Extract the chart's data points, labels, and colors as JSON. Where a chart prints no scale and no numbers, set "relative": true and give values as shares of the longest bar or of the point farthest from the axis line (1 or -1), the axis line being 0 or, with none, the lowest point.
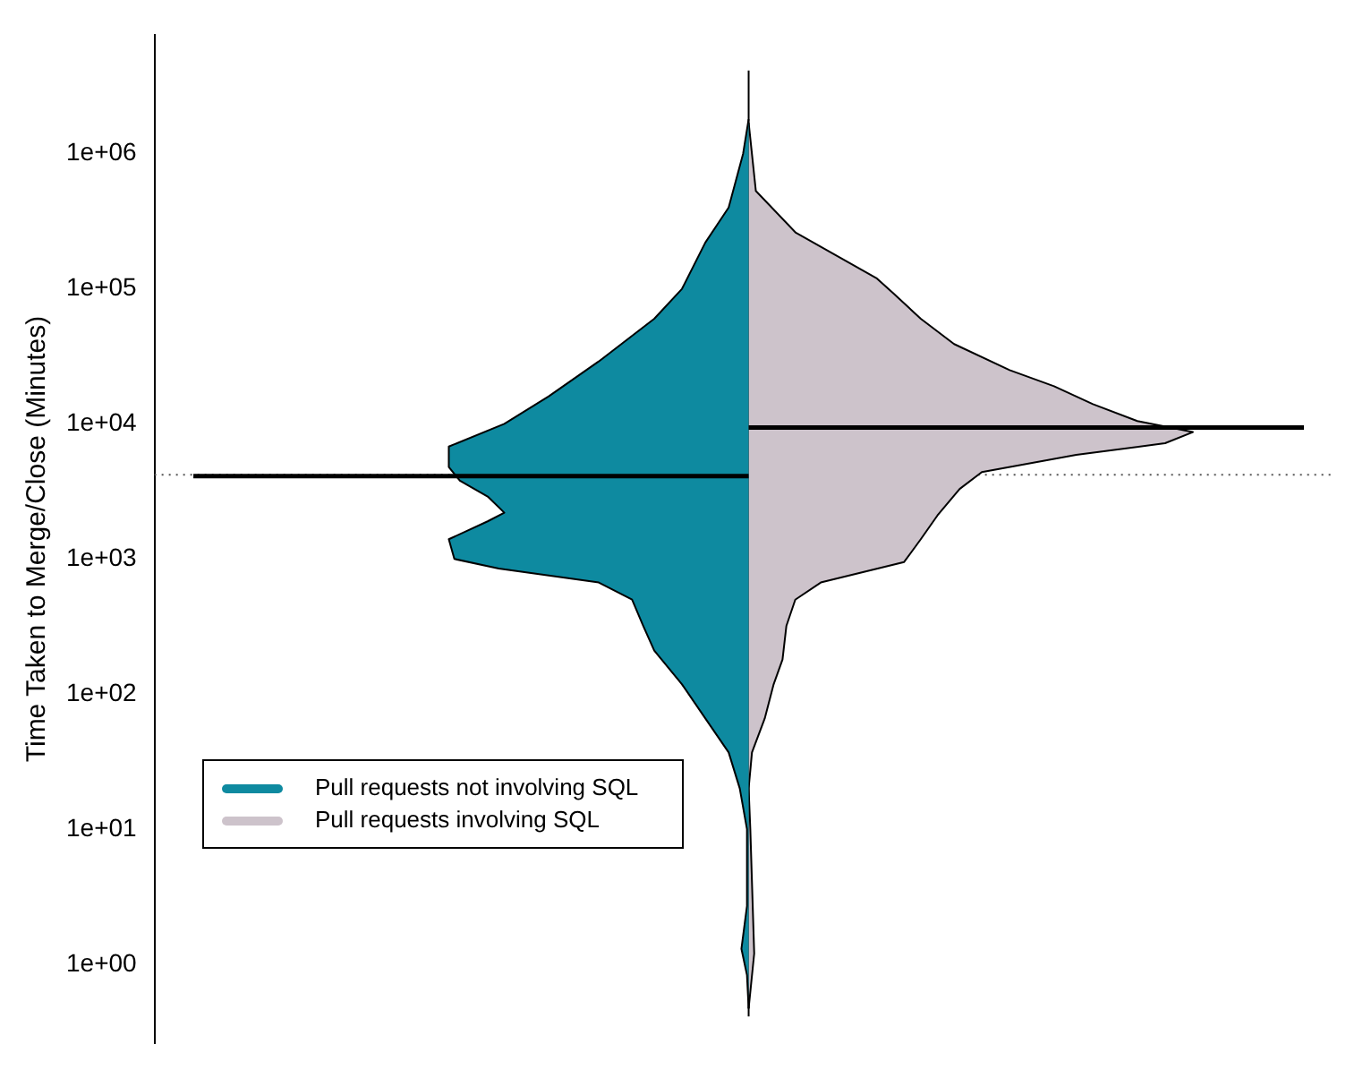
{
  "chart_data": {
    "type": "area",
    "orientation": "horizontal",
    "relative": true,
    "log": "y",
    "ylabel": "Time Taken to Merge/Close (Minutes)",
    "ylim": [
      0.26,
      7600000
    ],
    "yticks": [
      {
        "value": 1,
        "label": "1e+00"
      },
      {
        "value": 10,
        "label": "1e+01"
      },
      {
        "value": 100,
        "label": "1e+02"
      },
      {
        "value": 1000,
        "label": "1e+03"
      },
      {
        "value": 10000,
        "label": "1e+04"
      },
      {
        "value": 100000,
        "label": "1e+05"
      },
      {
        "value": 1000000,
        "label": "1e+06"
      }
    ],
    "grid": false,
    "legend": "bottom left",
    "series": [
      {
        "name": "Pull requests not involving SQL",
        "color": "#0e8aa0",
        "x": [
          1800000,
          1000000,
          400000,
          220000,
          100000,
          60000,
          29000,
          16000,
          10000,
          6800,
          4800,
          3800,
          2900,
          2200,
          1900,
          1400,
          1000,
          850,
          670,
          500,
          320,
          210,
          118,
          66,
          37,
          20,
          10,
          2.7,
          1.3,
          0.83,
          0.47
        ],
        "values": [
          0,
          -0.01,
          -0.036,
          -0.078,
          -0.12,
          -0.17,
          -0.27,
          -0.36,
          -0.44,
          -0.54,
          -0.54,
          -0.52,
          -0.47,
          -0.44,
          -0.47,
          -0.54,
          -0.53,
          -0.45,
          -0.27,
          -0.21,
          -0.19,
          -0.17,
          -0.12,
          -0.078,
          -0.036,
          -0.016,
          -0.003,
          -0.003,
          -0.013,
          -0.003,
          0
        ]
      },
      {
        "name": "Pull requests involving SQL",
        "color": "#cdc3cb",
        "x": [
          1700000,
          530000,
          260000,
          170000,
          120000,
          93000,
          60000,
          39000,
          25000,
          19000,
          14000,
          10500,
          8700,
          7200,
          5900,
          4400,
          3300,
          2100,
          1400,
          950,
          670,
          500,
          320,
          180,
          118,
          66,
          37,
          20,
          10,
          1.2,
          0.47
        ],
        "values": [
          0,
          0.013,
          0.085,
          0.165,
          0.23,
          0.26,
          0.31,
          0.37,
          0.47,
          0.55,
          0.62,
          0.7,
          0.8,
          0.75,
          0.59,
          0.42,
          0.38,
          0.34,
          0.31,
          0.28,
          0.13,
          0.084,
          0.068,
          0.061,
          0.045,
          0.029,
          0.006,
          0,
          0.003,
          0.01,
          0
        ]
      },
      {
        "type": "line",
        "color": "#000000",
        "x": [
          4100,
          4100
        ],
        "values": [
          -1,
          0
        ]
      },
      {
        "type": "line",
        "color": "#000000",
        "x": [
          9400,
          9400
        ],
        "values": [
          0,
          1
        ]
      }
    ],
    "ref_lines": [
      {
        "axis": "y",
        "value": 4200,
        "label": null,
        "color": "#555555",
        "line_style": "dotted"
      }
    ]
  }
}
